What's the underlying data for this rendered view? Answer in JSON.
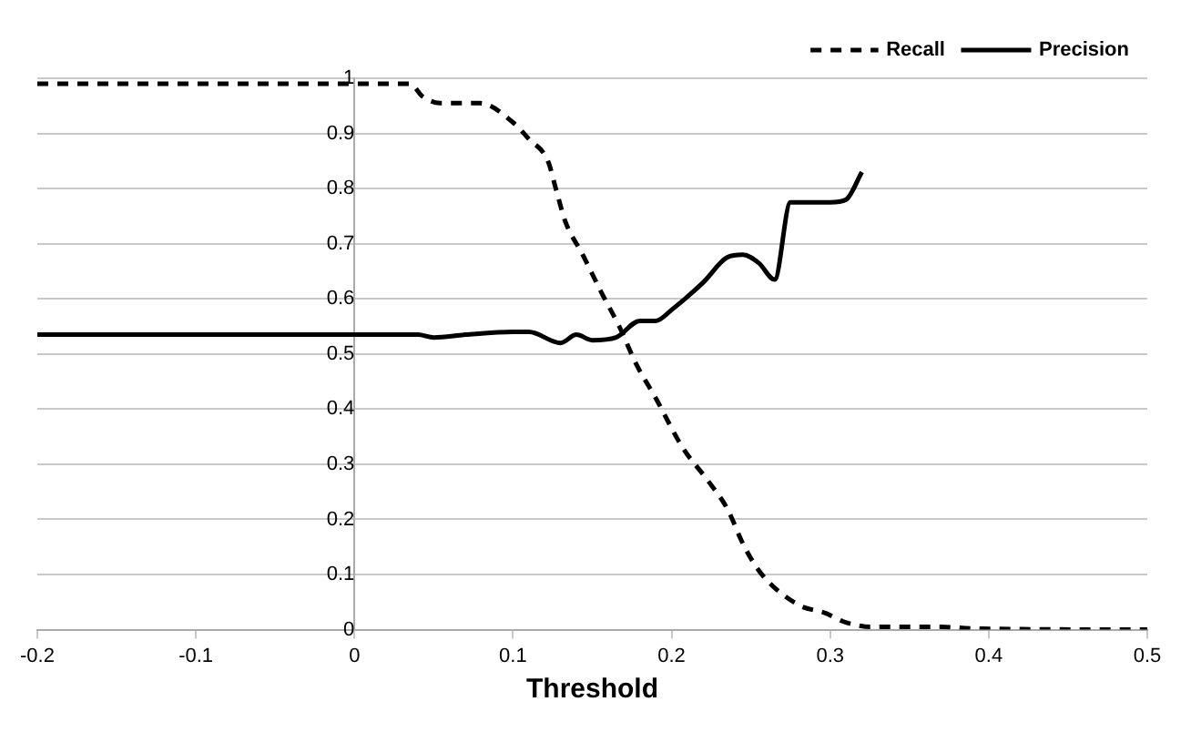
{
  "chart_data": {
    "type": "line",
    "xlabel": "Threshold",
    "xlim": [
      -0.2,
      0.5
    ],
    "xticks": [
      -0.2,
      -0.1,
      0,
      0.1,
      0.2,
      0.3,
      0.4,
      0.5
    ],
    "ylim": [
      0,
      1
    ],
    "yticks": [
      0,
      0.1,
      0.2,
      0.3,
      0.4,
      0.5,
      0.6,
      0.7,
      0.8,
      0.9,
      1
    ],
    "grid": "y",
    "legend": "top right",
    "marker": "none",
    "series": [
      {
        "name": "Recall",
        "color": "#000000",
        "line_style": "dashed",
        "x": [
          -0.2,
          0.035,
          0.043,
          0.054,
          0.079,
          0.1,
          0.11,
          0.122,
          0.127,
          0.133,
          0.144,
          0.156,
          0.167,
          0.178,
          0.19,
          0.207,
          0.223,
          0.235,
          0.246,
          0.257,
          0.28,
          0.297,
          0.308,
          0.314,
          0.325,
          0.37,
          0.39,
          0.5
        ],
        "values": [
          0.99,
          0.99,
          0.967,
          0.955,
          0.955,
          0.92,
          0.89,
          0.85,
          0.8,
          0.74,
          0.68,
          0.61,
          0.55,
          0.48,
          0.42,
          0.33,
          0.27,
          0.22,
          0.15,
          0.1,
          0.045,
          0.03,
          0.015,
          0.01,
          0.005,
          0.005,
          0.002,
          0
        ]
      },
      {
        "name": "Precision",
        "color": "#000000",
        "line_style": "solid",
        "x": [
          -0.2,
          0.04,
          0.05,
          0.07,
          0.1,
          0.11,
          0.13,
          0.14,
          0.15,
          0.165,
          0.18,
          0.19,
          0.2,
          0.22,
          0.235,
          0.245,
          0.255,
          0.265,
          0.275,
          0.285,
          0.3,
          0.31,
          0.32
        ],
        "values": [
          0.535,
          0.535,
          0.53,
          0.535,
          0.54,
          0.54,
          0.52,
          0.535,
          0.525,
          0.53,
          0.56,
          0.56,
          0.58,
          0.63,
          0.675,
          0.68,
          0.665,
          0.635,
          0.775,
          0.775,
          0.775,
          0.78,
          0.83
        ]
      }
    ]
  }
}
